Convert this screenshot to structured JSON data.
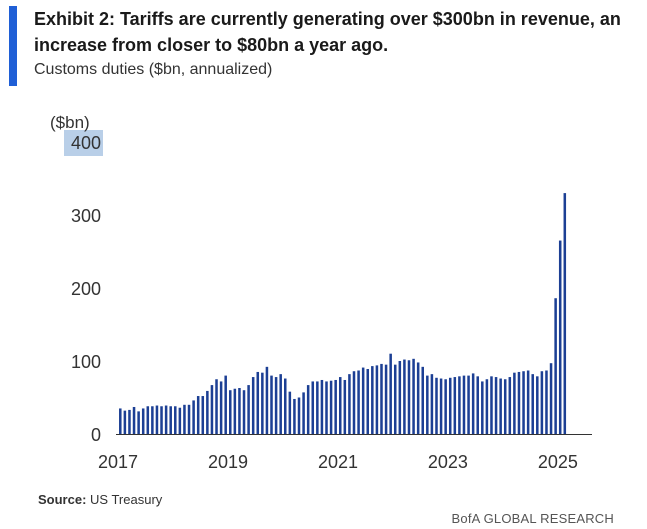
{
  "header": {
    "title": "Exhibit 2: Tariffs are currently generating over $300bn in revenue, an increase from closer to $80bn a year ago.",
    "subtitle": "Customs duties ($bn, annualized)"
  },
  "footer": {
    "source_label": "Source:",
    "source_text": "US Treasury",
    "brand": "BofA GLOBAL RESEARCH"
  },
  "colors": {
    "bar": "#1c3f94",
    "accent": "#1f5fd6",
    "unit_highlight": "#b9cfe8"
  },
  "chart_data": {
    "type": "bar",
    "title": "Customs duties ($bn, annualized)",
    "unit_label": "($bn)",
    "xlabel": "",
    "ylabel": "",
    "ylim": [
      0,
      400
    ],
    "yticks": [
      0,
      100,
      200,
      300,
      400
    ],
    "ytick_labels": [
      "0",
      "100",
      "200",
      "300",
      "400"
    ],
    "xticks": [
      "2017",
      "2019",
      "2021",
      "2023",
      "2025"
    ],
    "grid": false,
    "series": [
      {
        "values": [
          35,
          32,
          33,
          37,
          31,
          35,
          38,
          38,
          39,
          38,
          39,
          38,
          38,
          36,
          40,
          40,
          46,
          52,
          52,
          59,
          67,
          75,
          72,
          80,
          60,
          62,
          63,
          60,
          67,
          78,
          85,
          84,
          92,
          80,
          78,
          82,
          76,
          58,
          48,
          50,
          57,
          67,
          72,
          72,
          74,
          72,
          73,
          74,
          78,
          74,
          82,
          86,
          87,
          91,
          89,
          93,
          94,
          96,
          95,
          110,
          95,
          100,
          102,
          101,
          103,
          98,
          92,
          80,
          82,
          77,
          76,
          75,
          77,
          78,
          79,
          80,
          80,
          83,
          79,
          72,
          75,
          79,
          78,
          76,
          75,
          78,
          84,
          85,
          86,
          87,
          82,
          79,
          86,
          87,
          97,
          186,
          265,
          330
        ]
      }
    ],
    "x_start": "2017-01",
    "x_end": "2025-06"
  }
}
